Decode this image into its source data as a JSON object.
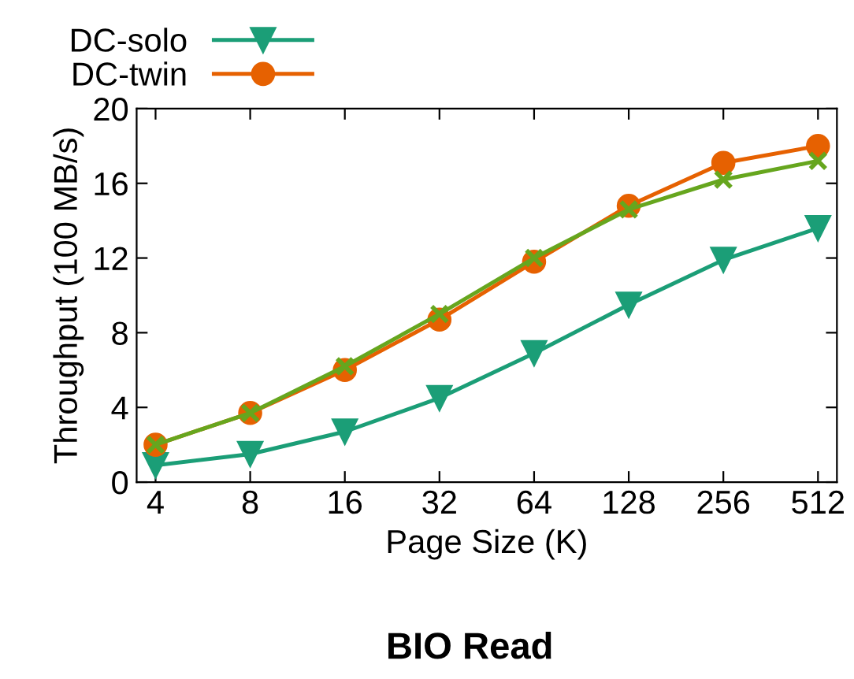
{
  "chart_data": {
    "type": "line",
    "title": "BIO Read",
    "xlabel": "Page Size (K)",
    "ylabel": "Throughput (100 MB/s)",
    "categories": [
      "4",
      "8",
      "16",
      "32",
      "64",
      "128",
      "256",
      "512"
    ],
    "ylim": [
      0,
      20
    ],
    "yticks": [
      0,
      4,
      8,
      12,
      16,
      20
    ],
    "grid": false,
    "legend": "top",
    "series": [
      {
        "name": "DC-solo",
        "color": "#1b9e77",
        "marker": "triangle",
        "values": [
          0.9,
          1.5,
          2.7,
          4.5,
          6.9,
          9.5,
          11.9,
          13.6
        ]
      },
      {
        "name": "DC-twin",
        "color": "#e66101",
        "marker": "circle",
        "values": [
          2.0,
          3.7,
          6.0,
          8.7,
          11.8,
          14.8,
          17.1,
          18.0
        ]
      },
      {
        "color": "#66a61e",
        "marker": "cross",
        "values": [
          2.0,
          3.7,
          6.2,
          9.0,
          12.0,
          14.6,
          16.2,
          17.2
        ]
      }
    ]
  }
}
